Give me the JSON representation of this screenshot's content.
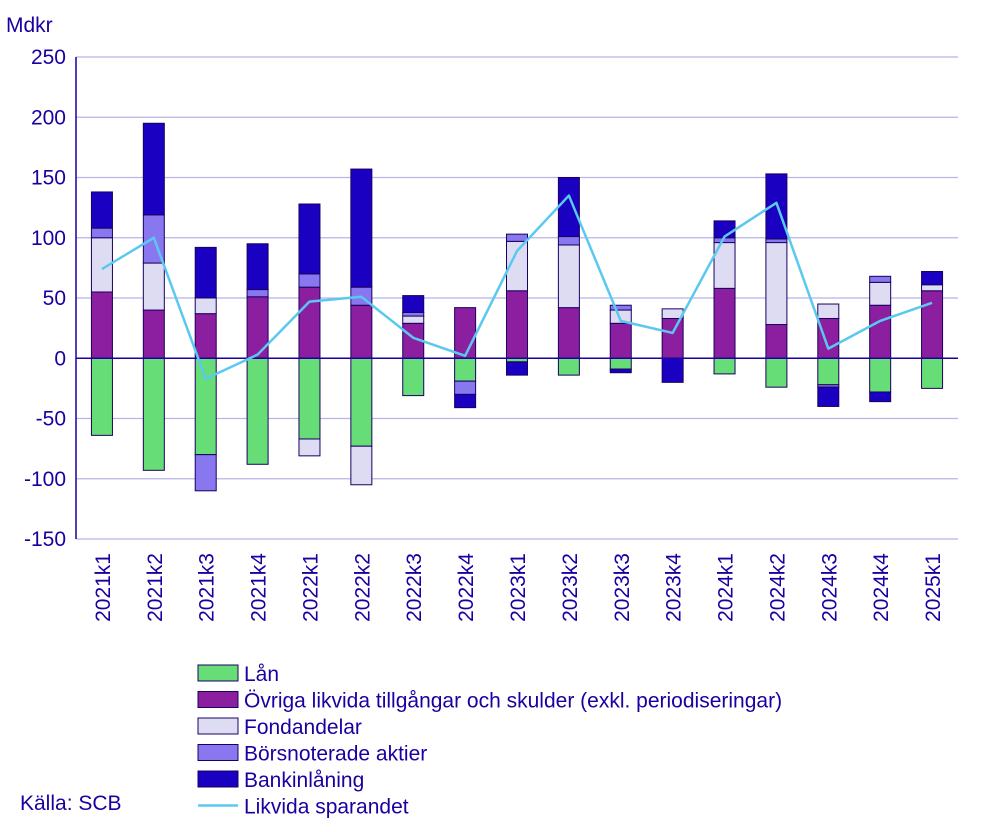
{
  "chart_data": {
    "type": "bar",
    "stacked": true,
    "unit_label": "Mdkr",
    "ylim": [
      -150,
      250
    ],
    "yticks": [
      250,
      200,
      150,
      100,
      50,
      0,
      -50,
      -100,
      -150
    ],
    "categories": [
      "2021k1",
      "2021k2",
      "2021k3",
      "2021k4",
      "2022k1",
      "2022k2",
      "2022k3",
      "2022k4",
      "2023k1",
      "2023k2",
      "2023k3",
      "2023k4",
      "2024k1",
      "2024k2",
      "2024k3",
      "2024k4",
      "2025k1"
    ],
    "series": [
      {
        "name": "Lån",
        "color": "#66dd77",
        "values": [
          -64,
          -93,
          -80,
          -88,
          -67,
          -73,
          -31,
          -19,
          -3,
          -14,
          -9,
          0,
          -13,
          -24,
          -22,
          -28,
          -25
        ]
      },
      {
        "name": "Övriga likvida tillgångar och skulder (exkl. periodiseringar)",
        "color": "#8b1fa0",
        "values": [
          55,
          40,
          37,
          51,
          59,
          44,
          29,
          42,
          56,
          42,
          29,
          33,
          58,
          28,
          33,
          44,
          56
        ]
      },
      {
        "name": "Fondandelar",
        "color": "#dddcf2",
        "values": [
          45,
          39,
          13,
          0,
          -14,
          -32,
          6,
          0,
          41,
          52,
          11,
          8,
          38,
          68,
          12,
          19,
          5
        ]
      },
      {
        "name": "Börsnoterade aktier",
        "color": "#8877ee",
        "values": [
          8,
          40,
          -30,
          6,
          11,
          15,
          3,
          -11,
          6,
          7,
          4,
          0,
          4,
          3,
          -2,
          5,
          0
        ]
      },
      {
        "name": "Bankinlåning",
        "color": "#1a00c0",
        "values": [
          30,
          76,
          42,
          38,
          58,
          98,
          14,
          -11,
          -11,
          49,
          -3,
          -20,
          14,
          54,
          -16,
          -8,
          11
        ]
      }
    ],
    "line_series": {
      "name": "Likvida sparandet",
      "color": "#5bc8f0",
      "values": [
        74,
        100,
        -17,
        3,
        47,
        51,
        17,
        2,
        89,
        135,
        31,
        21,
        101,
        129,
        8,
        31,
        46
      ]
    },
    "legend_order": [
      "Lån",
      "Övriga likvida tillgångar och skulder (exkl. periodiseringar)",
      "Fondandelar",
      "Börsnoterade aktier",
      "Bankinlåning",
      "Likvida sparandet"
    ],
    "legend_position": "bottom-center",
    "grid": true
  },
  "source": "Källa: SCB"
}
